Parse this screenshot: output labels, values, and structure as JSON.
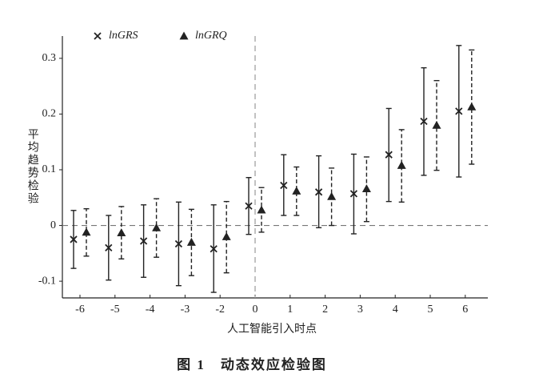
{
  "chart_data": {
    "type": "errorbar",
    "caption": "图 1　动态效应检验图",
    "x_label": "人工智能引入时点",
    "y_label": "平均趋势检验",
    "categories": [
      "-6",
      "-5",
      "-4",
      "-3",
      "-2",
      "0",
      "1",
      "2",
      "3",
      "4",
      "5",
      "6"
    ],
    "ylim": [
      -0.13,
      0.34
    ],
    "yticks": [
      -0.1,
      0,
      0.1,
      0.2,
      0.3
    ],
    "reference_lines": {
      "y": 0,
      "x": "0"
    },
    "legend": "top-left",
    "series": [
      {
        "name": "lnGRS",
        "color": "#222222",
        "marker": "x",
        "line": "solid",
        "values": [
          -0.025,
          -0.04,
          -0.028,
          -0.033,
          -0.042,
          0.035,
          0.072,
          0.06,
          0.057,
          0.127,
          0.187,
          0.205
        ],
        "lower": [
          -0.077,
          -0.098,
          -0.093,
          -0.108,
          -0.12,
          -0.016,
          0.018,
          -0.004,
          -0.015,
          0.043,
          0.09,
          0.087
        ],
        "upper": [
          0.027,
          0.018,
          0.037,
          0.042,
          0.037,
          0.086,
          0.127,
          0.125,
          0.128,
          0.21,
          0.283,
          0.323
        ]
      },
      {
        "name": "lnGRQ",
        "color": "#222222",
        "marker": "triangle",
        "line": "dashed",
        "values": [
          -0.012,
          -0.013,
          -0.004,
          -0.03,
          -0.02,
          0.028,
          0.062,
          0.052,
          0.066,
          0.108,
          0.18,
          0.213
        ],
        "lower": [
          -0.055,
          -0.06,
          -0.057,
          -0.09,
          -0.085,
          -0.012,
          0.018,
          0.0,
          0.007,
          0.042,
          0.099,
          0.11
        ],
        "upper": [
          0.03,
          0.034,
          0.048,
          0.029,
          0.043,
          0.068,
          0.105,
          0.103,
          0.123,
          0.172,
          0.26,
          0.315
        ]
      }
    ]
  }
}
